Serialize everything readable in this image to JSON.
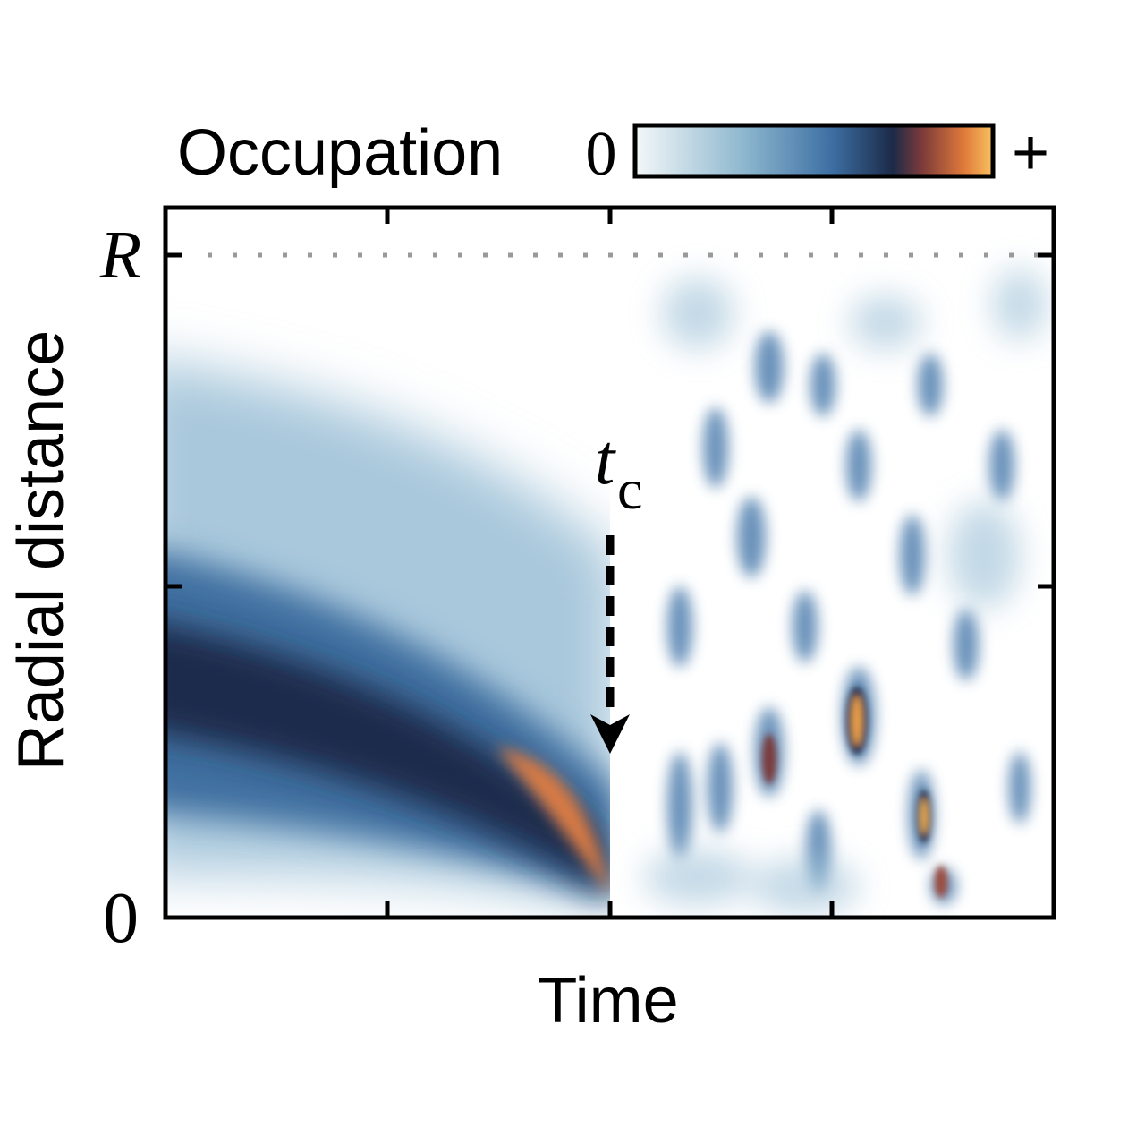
{
  "chart_data": {
    "type": "heatmap",
    "colorbar": {
      "label": "Occupation",
      "min_label": "0",
      "max_label": "+"
    },
    "x_label": "Time",
    "y_label": "Radial distance",
    "y_tick_labels": [
      "0",
      "R"
    ],
    "annotation": {
      "text": "t",
      "subscript": "c"
    }
  }
}
